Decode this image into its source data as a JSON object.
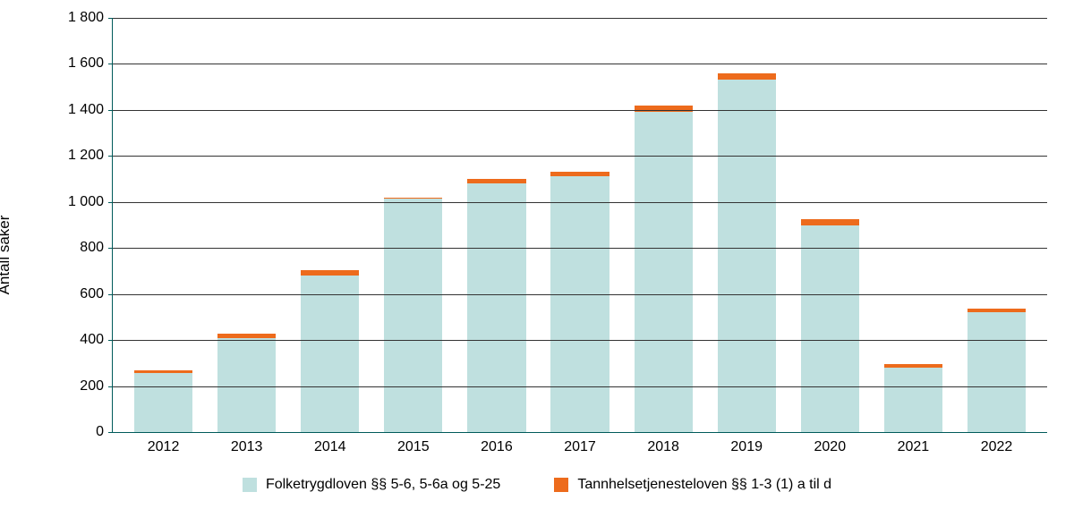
{
  "chart": {
    "type": "stacked-bar",
    "y_axis_label": "Antall saker",
    "label_fontsize": 17,
    "tick_fontsize": 16,
    "background_color": "#ffffff",
    "axis_color": "#005a5a",
    "grid_color": "#333333",
    "ylim": [
      0,
      1800
    ],
    "ytick_step": 200,
    "yticks": [
      0,
      200,
      400,
      600,
      800,
      1000,
      1200,
      1400,
      1600,
      1800
    ],
    "ytick_labels": [
      "0",
      "200",
      "400",
      "600",
      "800",
      "1 000",
      "1 200",
      "1 400",
      "1 600",
      "1 800"
    ],
    "categories": [
      "2012",
      "2013",
      "2014",
      "2015",
      "2016",
      "2017",
      "2018",
      "2019",
      "2020",
      "2021",
      "2022"
    ],
    "series": [
      {
        "name": "Folketrygdloven §§ 5-6, 5-6a og 5-25",
        "color": "#bfe0df",
        "values": [
          255,
          410,
          680,
          1015,
          1080,
          1110,
          1390,
          1530,
          900,
          280,
          520
        ]
      },
      {
        "name": "Tannhelsetjenesteloven §§ 1-3 (1) a til d",
        "color": "#ed6b1c",
        "values": [
          15,
          18,
          22,
          5,
          20,
          20,
          30,
          30,
          25,
          15,
          18
        ]
      }
    ],
    "bar_width": 0.7
  }
}
